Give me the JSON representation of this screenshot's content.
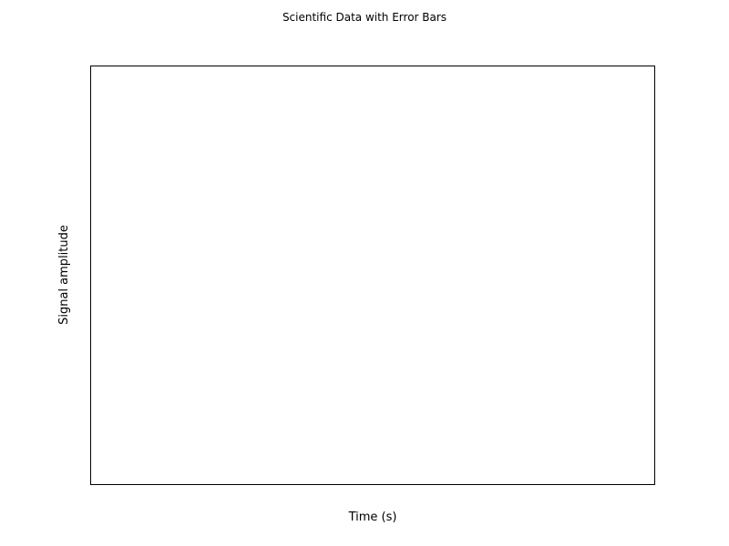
{
  "chart_data": {
    "type": "scatter",
    "title": "Scientific Data with Error Bars",
    "xlabel": "Time (s)",
    "ylabel": "Signal amplitude",
    "series": [],
    "grid": false
  }
}
